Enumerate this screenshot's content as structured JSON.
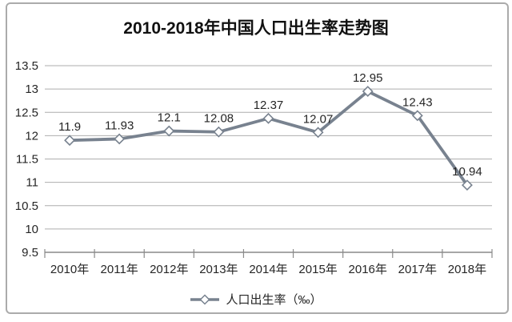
{
  "chart_data": {
    "type": "line",
    "title": "2010-2018年中国人口出生率走势图",
    "categories": [
      "2010年",
      "2011年",
      "2012年",
      "2013年",
      "2014年",
      "2015年",
      "2016年",
      "2017年",
      "2018年"
    ],
    "series": [
      {
        "name": "人口出生率（‰）",
        "values": [
          11.9,
          11.93,
          12.1,
          12.08,
          12.37,
          12.07,
          12.95,
          12.43,
          10.94
        ],
        "labels": [
          "11.9",
          "11.93",
          "12.1",
          "12.08",
          "12.37",
          "12.07",
          "12.95",
          "12.43",
          "10.94"
        ]
      }
    ],
    "xlabel": "",
    "ylabel": "",
    "ylim": [
      9.5,
      13.5
    ],
    "ytick_step": 0.5,
    "yticks": [
      "13.5",
      "13",
      "12.5",
      "12",
      "11.5",
      "11",
      "10.5",
      "10",
      "9.5"
    ],
    "grid": true,
    "legend_position": "bottom",
    "marker_shape": "diamond",
    "colors": {
      "line": "#78828F",
      "marker_fill": "#FFFFFF",
      "grid": "#AEAEAE",
      "axis": "#8A8A8A",
      "text": "#262626",
      "title": "#111111",
      "border": "#ABABAB"
    }
  }
}
